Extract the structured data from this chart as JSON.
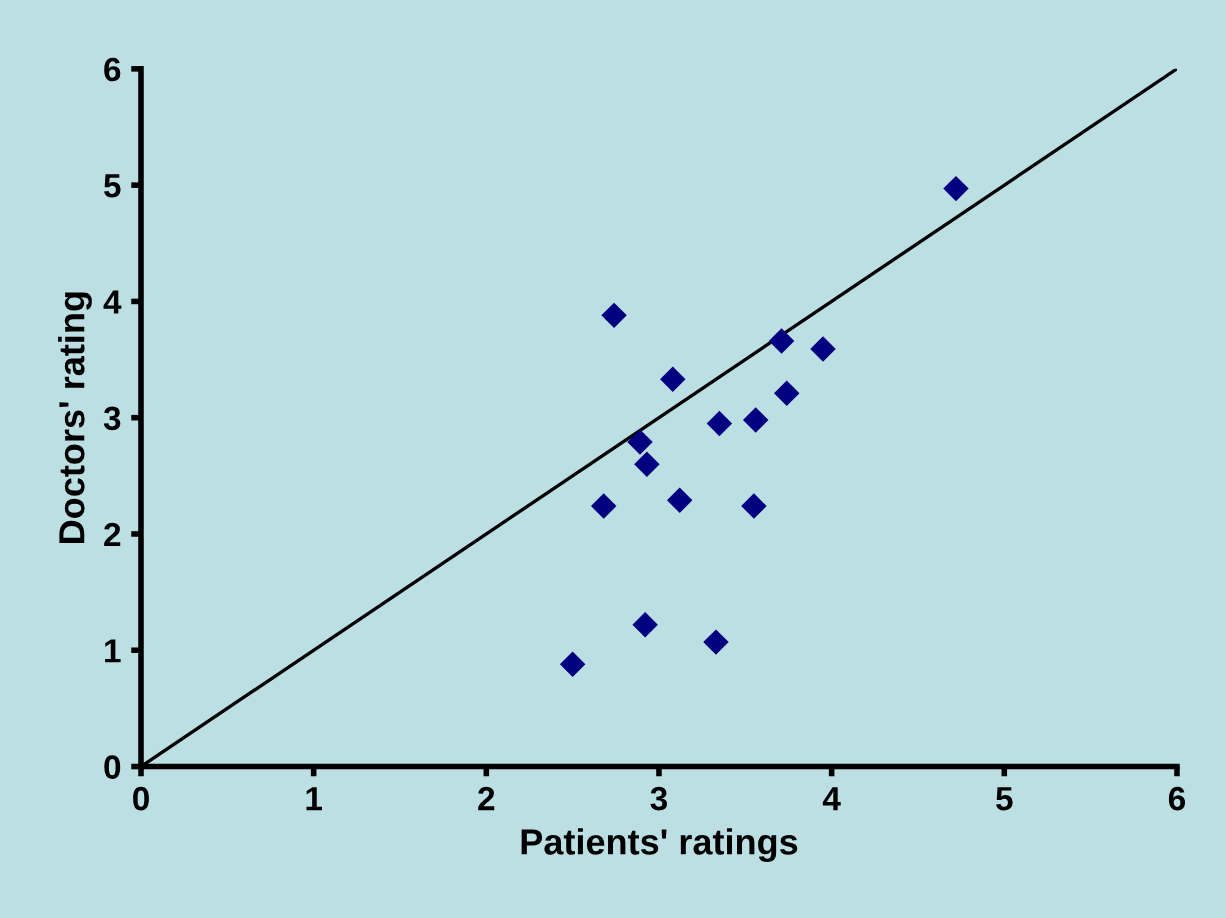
{
  "chart_data": {
    "type": "scatter",
    "xlabel": "Patients' ratings",
    "ylabel": "Doctors' rating",
    "xlim": [
      0,
      6
    ],
    "ylim": [
      0,
      6
    ],
    "xticks": [
      0,
      1,
      2,
      3,
      4,
      5,
      6
    ],
    "yticks": [
      0,
      1,
      2,
      3,
      4,
      5,
      6
    ],
    "grid": false,
    "legend": false,
    "marker": "diamond",
    "series": [
      {
        "color": "#000080",
        "x": [
          2.74,
          3.08,
          3.71,
          3.95,
          3.74,
          3.35,
          3.56,
          2.89,
          2.93,
          2.68,
          3.12,
          3.55,
          2.92,
          3.33,
          2.5,
          4.72
        ],
        "values": [
          3.88,
          3.33,
          3.66,
          3.59,
          3.21,
          2.95,
          2.98,
          2.79,
          2.6,
          2.24,
          2.29,
          2.24,
          1.22,
          1.07,
          0.88,
          4.97
        ]
      },
      {
        "type": "line",
        "color": "#000000",
        "x": [
          0,
          6
        ],
        "values": [
          0,
          6
        ],
        "marker": "none"
      }
    ]
  }
}
